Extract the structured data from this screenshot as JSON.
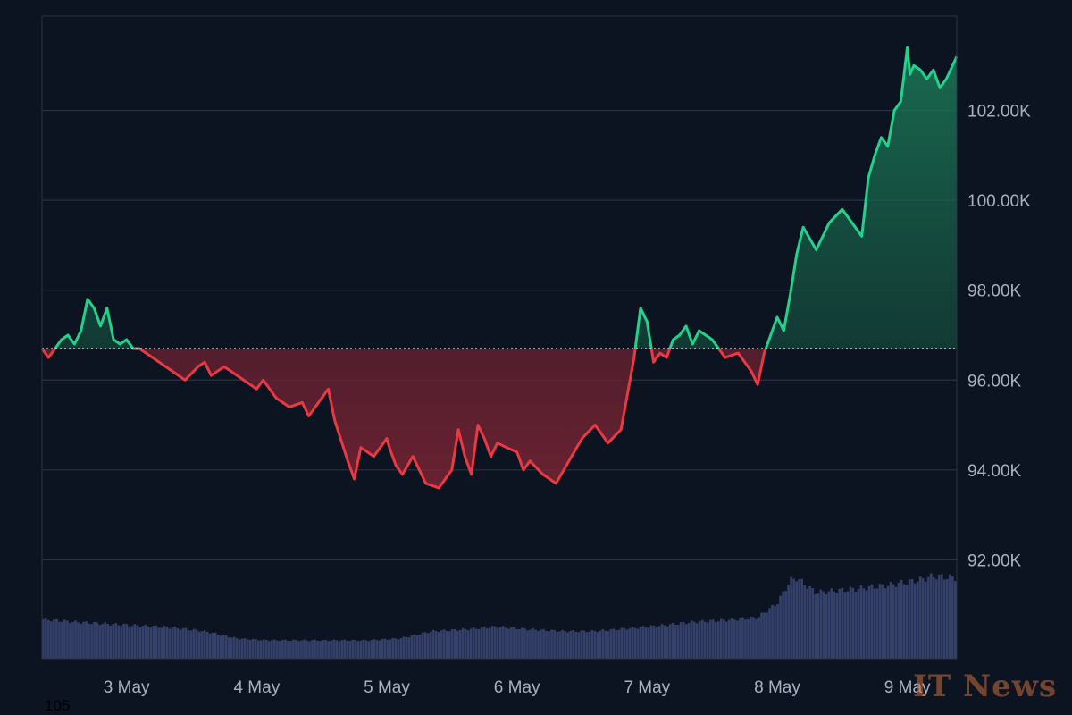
{
  "chart_data": {
    "type": "area",
    "title": "",
    "xlabel": "",
    "ylabel": "",
    "x_ticks": [
      "3 May",
      "4 May",
      "5 May",
      "6 May",
      "7 May",
      "8 May",
      "9 May"
    ],
    "x_range": [
      2.35,
      9.38
    ],
    "y_ticks": [
      "92.00K",
      "94.00K",
      "96.00K",
      "98.00K",
      "100.00K",
      "102.00K"
    ],
    "y_tick_values": [
      92000,
      94000,
      96000,
      98000,
      100000,
      102000
    ],
    "ylim": [
      89800,
      104100
    ],
    "baseline": 96700,
    "grid": true,
    "series": [
      {
        "x": [
          2.35,
          2.4,
          2.45,
          2.5,
          2.55,
          2.6,
          2.65,
          2.7,
          2.75,
          2.8,
          2.85,
          2.9,
          2.95,
          3.0,
          3.05,
          3.1,
          3.15,
          3.25,
          3.35,
          3.45,
          3.55,
          3.6,
          3.65,
          3.75,
          3.85,
          3.95,
          4.0,
          4.05,
          4.15,
          4.25,
          4.35,
          4.4,
          4.45,
          4.55,
          4.6,
          4.7,
          4.75,
          4.8,
          4.9,
          5.0,
          5.02,
          5.07,
          5.12,
          5.2,
          5.3,
          5.4,
          5.5,
          5.55,
          5.6,
          5.65,
          5.7,
          5.75,
          5.8,
          5.85,
          5.92,
          6.0,
          6.05,
          6.1,
          6.2,
          6.3,
          6.4,
          6.5,
          6.6,
          6.7,
          6.8,
          6.9,
          6.95,
          7.0,
          7.05,
          7.1,
          7.15,
          7.2,
          7.25,
          7.3,
          7.35,
          7.4,
          7.5,
          7.6,
          7.7,
          7.8,
          7.85,
          7.9,
          7.95,
          8.0,
          8.05,
          8.1,
          8.15,
          8.2,
          8.3,
          8.4,
          8.5,
          8.6,
          8.65,
          8.7,
          8.75,
          8.8,
          8.85,
          8.9,
          8.95,
          9.0,
          9.02,
          9.05,
          9.1,
          9.15,
          9.2,
          9.25,
          9.3,
          9.38
        ],
        "y": [
          96700,
          96500,
          96700,
          96900,
          97000,
          96800,
          97100,
          97800,
          97600,
          97200,
          97600,
          96900,
          96800,
          96900,
          96700,
          96700,
          96600,
          96400,
          96200,
          96000,
          96300,
          96400,
          96100,
          96300,
          96100,
          95900,
          95800,
          96000,
          95600,
          95400,
          95500,
          95200,
          95400,
          95800,
          95100,
          94200,
          93800,
          94500,
          94300,
          94700,
          94500,
          94100,
          93900,
          94300,
          93700,
          93600,
          94000,
          94900,
          94300,
          93900,
          95000,
          94700,
          94300,
          94600,
          94500,
          94400,
          94000,
          94200,
          93900,
          93700,
          94200,
          94700,
          95000,
          94600,
          94900,
          96500,
          97600,
          97300,
          96400,
          96600,
          96500,
          96900,
          97000,
          97200,
          96800,
          97100,
          96900,
          96500,
          96600,
          96200,
          95900,
          96600,
          97000,
          97400,
          97100,
          97900,
          98800,
          99400,
          98900,
          99500,
          99800,
          99400,
          99200,
          100500,
          101000,
          101400,
          101200,
          102000,
          102200,
          103400,
          102800,
          103000,
          102900,
          102700,
          102900,
          102500,
          102700,
          103200
        ]
      }
    ],
    "volume": {
      "x": [
        2.35,
        2.6,
        2.85,
        3.1,
        3.35,
        3.6,
        3.85,
        4.1,
        4.35,
        4.6,
        4.85,
        5.1,
        5.35,
        5.6,
        5.85,
        6.1,
        6.35,
        6.6,
        6.85,
        7.1,
        7.35,
        7.6,
        7.85,
        8.0,
        8.1,
        8.15,
        8.3,
        8.45,
        8.6,
        8.85,
        9.1,
        9.2,
        9.38
      ],
      "values": [
        0.43,
        0.4,
        0.38,
        0.36,
        0.34,
        0.3,
        0.22,
        0.2,
        0.2,
        0.2,
        0.2,
        0.22,
        0.3,
        0.32,
        0.35,
        0.32,
        0.3,
        0.3,
        0.33,
        0.36,
        0.4,
        0.42,
        0.45,
        0.6,
        0.85,
        0.88,
        0.72,
        0.74,
        0.76,
        0.8,
        0.86,
        0.9,
        0.88
      ],
      "max_ratio": 1.0
    },
    "colors": {
      "up": "#23d18b",
      "down": "#ea3943",
      "up_fill_top": "#1a6b4f",
      "down_fill": "#7a2030",
      "grid": "#2a3344",
      "axis_text": "#a7b1c2",
      "volume": "#34406a",
      "baseline": "#e8e8e8"
    }
  },
  "footer": {
    "corner_label": "105",
    "watermark": "IT News"
  }
}
